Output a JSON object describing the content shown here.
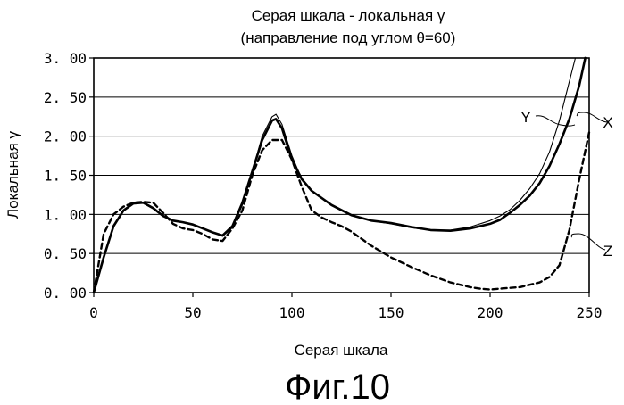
{
  "chart_data": {
    "type": "line",
    "title": "Серая шкала - локальная γ",
    "subtitle": "(направление под углом θ=60)",
    "xlabel": "Серая шкала",
    "ylabel": "Локальная γ",
    "figure_label": "Фиг.10",
    "xlim": [
      0,
      250
    ],
    "ylim": [
      0,
      3
    ],
    "x_ticks": [
      "0",
      "50",
      "100",
      "150",
      "200",
      "250"
    ],
    "y_ticks": [
      "0. 00",
      "0. 50",
      "1. 00",
      "1. 50",
      "2. 00",
      "2. 50",
      "3. 00"
    ],
    "grid": "horizontal",
    "series": [
      {
        "name": "X",
        "style": "thick-solid",
        "x": [
          0,
          5,
          10,
          15,
          20,
          25,
          30,
          35,
          40,
          45,
          50,
          55,
          60,
          65,
          70,
          75,
          80,
          85,
          90,
          92,
          95,
          100,
          105,
          110,
          120,
          130,
          140,
          150,
          160,
          170,
          180,
          190,
          200,
          205,
          210,
          215,
          220,
          225,
          230,
          235,
          240,
          245,
          248
        ],
        "y": [
          0.0,
          0.45,
          0.85,
          1.05,
          1.14,
          1.15,
          1.08,
          0.98,
          0.92,
          0.9,
          0.87,
          0.82,
          0.77,
          0.73,
          0.85,
          1.15,
          1.55,
          1.95,
          2.2,
          2.22,
          2.1,
          1.7,
          1.45,
          1.3,
          1.12,
          0.99,
          0.92,
          0.89,
          0.84,
          0.8,
          0.79,
          0.82,
          0.88,
          0.93,
          1.02,
          1.12,
          1.24,
          1.4,
          1.62,
          1.9,
          2.22,
          2.65,
          3.0
        ]
      },
      {
        "name": "Y",
        "style": "thin-solid",
        "x": [
          0,
          5,
          10,
          15,
          20,
          25,
          30,
          35,
          40,
          45,
          50,
          55,
          60,
          65,
          70,
          75,
          80,
          85,
          90,
          92,
          95,
          100,
          105,
          110,
          120,
          130,
          140,
          150,
          160,
          170,
          180,
          190,
          200,
          205,
          210,
          215,
          220,
          225,
          230,
          235,
          240,
          243
        ],
        "y": [
          0.0,
          0.45,
          0.85,
          1.05,
          1.14,
          1.15,
          1.08,
          0.98,
          0.92,
          0.9,
          0.87,
          0.82,
          0.77,
          0.72,
          0.83,
          1.12,
          1.55,
          2.0,
          2.25,
          2.28,
          2.15,
          1.75,
          1.45,
          1.3,
          1.12,
          0.99,
          0.92,
          0.88,
          0.83,
          0.8,
          0.8,
          0.84,
          0.92,
          0.98,
          1.06,
          1.18,
          1.33,
          1.52,
          1.8,
          2.2,
          2.7,
          3.0
        ]
      },
      {
        "name": "Z",
        "style": "dashed",
        "x": [
          0,
          5,
          10,
          15,
          20,
          25,
          30,
          35,
          40,
          45,
          50,
          55,
          60,
          65,
          70,
          75,
          80,
          85,
          90,
          95,
          100,
          105,
          110,
          115,
          120,
          125,
          130,
          140,
          150,
          160,
          170,
          180,
          190,
          195,
          200,
          205,
          210,
          215,
          220,
          225,
          230,
          235,
          240,
          245,
          250
        ],
        "y": [
          0.0,
          0.75,
          1.0,
          1.1,
          1.15,
          1.16,
          1.15,
          1.02,
          0.88,
          0.82,
          0.8,
          0.75,
          0.68,
          0.66,
          0.82,
          1.05,
          1.5,
          1.82,
          1.95,
          1.95,
          1.7,
          1.35,
          1.05,
          0.96,
          0.9,
          0.85,
          0.78,
          0.6,
          0.45,
          0.33,
          0.22,
          0.13,
          0.07,
          0.05,
          0.04,
          0.05,
          0.06,
          0.07,
          0.1,
          0.13,
          0.2,
          0.35,
          0.8,
          1.45,
          2.05
        ]
      }
    ]
  }
}
